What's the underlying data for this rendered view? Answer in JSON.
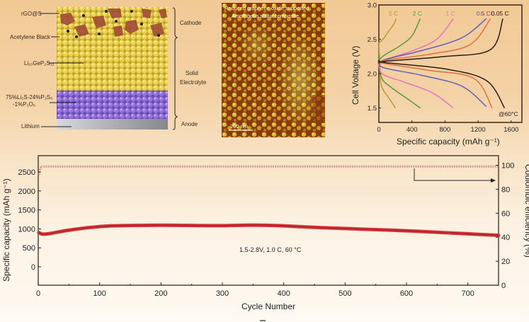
{
  "schematic": {
    "left_labels": [
      "rGO@S",
      "Acetylene Black",
      "Li₁₀GeP₂S₁₂",
      "75%Li₂S-24%P₂S₅",
      "-1%P₂O₅",
      "Lithium"
    ],
    "right_labels": {
      "cathode": "Cathode",
      "solid": "Solid",
      "electrolyte": "Electrolyte",
      "anode": "Anode"
    },
    "colors": {
      "cathode_particle": "#9a4a35",
      "electrolyte_particle": "#e8cf4a",
      "glass_particle": "#8f6ad6",
      "lithium": "#9ea0a3"
    }
  },
  "afm_image": {
    "caption_line1": "Reduced graphene oxide supported",
    "caption_line2": "Amorphous sulfur composite",
    "scale_bar": "200 nm"
  },
  "chart_data": [
    {
      "type": "line",
      "title": "",
      "xlabel": "Specific capacity (mAh g⁻¹)",
      "ylabel": "Cell Voltage (V)",
      "xlim": [
        0,
        1730
      ],
      "ylim": [
        1.29,
        3.0
      ],
      "xticks": [
        0,
        400,
        800,
        1200,
        1600
      ],
      "yticks": [
        1.5,
        2.0,
        2.5,
        3.0
      ],
      "annotation": "@60°C",
      "series": [
        {
          "name": "5 C",
          "color": "#b29a3c",
          "charge": [
            [
              0,
              2.45
            ],
            [
              50,
              2.5
            ],
            [
              120,
              2.62
            ],
            [
              180,
              2.72
            ],
            [
              210,
              2.8
            ]
          ],
          "discharge": [
            [
              0,
              2.45
            ],
            [
              20,
              1.9
            ],
            [
              60,
              1.75
            ],
            [
              120,
              1.65
            ],
            [
              200,
              1.5
            ]
          ]
        },
        {
          "name": "2 C",
          "color": "#5a9a3a",
          "charge": [
            [
              0,
              2.2
            ],
            [
              80,
              2.28
            ],
            [
              250,
              2.4
            ],
            [
              400,
              2.55
            ],
            [
              500,
              2.8
            ]
          ],
          "discharge": [
            [
              0,
              2.3
            ],
            [
              30,
              1.95
            ],
            [
              150,
              1.8
            ],
            [
              350,
              1.63
            ],
            [
              500,
              1.5
            ]
          ]
        },
        {
          "name": "1 C",
          "color": "#e276c0",
          "charge": [
            [
              0,
              2.1
            ],
            [
              80,
              2.2
            ],
            [
              400,
              2.33
            ],
            [
              700,
              2.5
            ],
            [
              900,
              2.8
            ]
          ],
          "discharge": [
            [
              0,
              2.2
            ],
            [
              40,
              2.0
            ],
            [
              300,
              1.88
            ],
            [
              650,
              1.72
            ],
            [
              900,
              1.5
            ]
          ]
        },
        {
          "name": "0.5 C",
          "color": "#5f5fb8",
          "charge": [
            [
              0,
              2.1
            ],
            [
              60,
              2.2
            ],
            [
              500,
              2.33
            ],
            [
              1000,
              2.52
            ],
            [
              1300,
              2.8
            ]
          ],
          "discharge": [
            [
              0,
              2.2
            ],
            [
              50,
              2.09
            ],
            [
              500,
              1.98
            ],
            [
              1000,
              1.82
            ],
            [
              1300,
              1.52
            ]
          ]
        },
        {
          "name": "0.1 C",
          "color": "#e0703a",
          "charge": [
            [
              0,
              2.1
            ],
            [
              60,
              2.19
            ],
            [
              600,
              2.28
            ],
            [
              1100,
              2.42
            ],
            [
              1350,
              2.8
            ]
          ],
          "discharge": [
            [
              0,
              2.2
            ],
            [
              60,
              2.15
            ],
            [
              600,
              2.05
            ],
            [
              1150,
              1.93
            ],
            [
              1370,
              1.5
            ]
          ]
        },
        {
          "name": "0.05 C",
          "color": "#2a1c14",
          "charge": [
            [
              0,
              2.15
            ],
            [
              80,
              2.18
            ],
            [
              800,
              2.25
            ],
            [
              1350,
              2.35
            ],
            [
              1500,
              2.8
            ]
          ],
          "discharge": [
            [
              0,
              2.2
            ],
            [
              80,
              2.16
            ],
            [
              800,
              2.07
            ],
            [
              1300,
              1.9
            ],
            [
              1520,
              1.5
            ]
          ]
        }
      ]
    },
    {
      "type": "line",
      "title": "",
      "xlabel": "Cycle Number",
      "ylabel": "Specific capacity (mAh g⁻¹)",
      "ylabel_right": "Coulombic efficiency (%)",
      "xlim": [
        0,
        750
      ],
      "ylim": [
        -485,
        2930
      ],
      "ylim_right": [
        0,
        108
      ],
      "xticks": [
        0,
        100,
        200,
        300,
        400,
        500,
        600,
        700
      ],
      "yticks": [
        0,
        500,
        1000,
        1500,
        2000,
        2500
      ],
      "yticks_right": [
        0,
        20,
        40,
        60,
        80,
        100
      ],
      "annotation": "1.5-2.8V, 1.0 C, 60 °C",
      "series": [
        {
          "name": "Specific capacity",
          "axis": "left",
          "color": "#d0262c",
          "x": [
            1,
            5,
            10,
            20,
            40,
            60,
            80,
            100,
            120,
            150,
            200,
            250,
            300,
            350,
            400,
            450,
            500,
            550,
            600,
            650,
            700,
            750
          ],
          "y": [
            900,
            870,
            860,
            880,
            940,
            990,
            1030,
            1060,
            1080,
            1090,
            1095,
            1090,
            1085,
            1100,
            1080,
            1040,
            1010,
            980,
            950,
            910,
            870,
            830
          ]
        },
        {
          "name": "Coulombic efficiency",
          "axis": "right",
          "color": "#d48a8c",
          "x": [
            1,
            3,
            6,
            10,
            50,
            100,
            200,
            300,
            400,
            500,
            600,
            700,
            750
          ],
          "y": [
            92,
            97,
            98.5,
            99,
            99,
            99,
            99,
            99,
            99,
            99,
            99,
            99,
            99
          ]
        }
      ]
    }
  ]
}
